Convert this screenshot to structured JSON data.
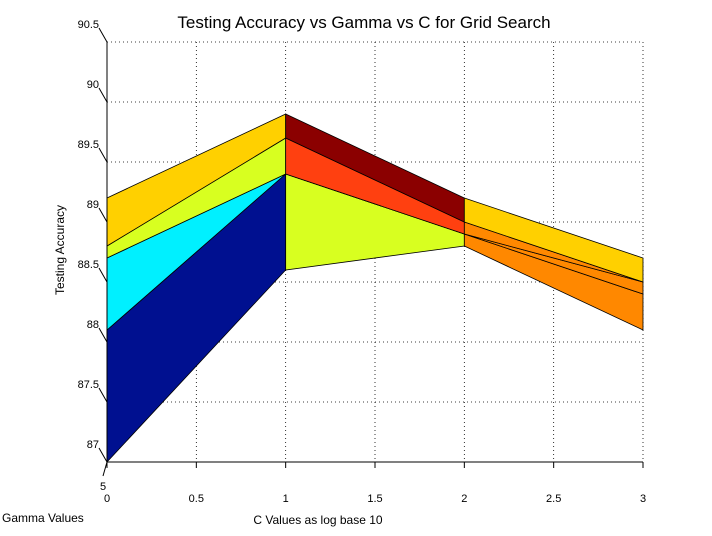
{
  "chart_data": {
    "type": "surface",
    "title": "Testing Accuracy vs Gamma vs C for Grid Search",
    "xlabel": "C Values as log base 10",
    "ylabel": "Testing Accuracy",
    "zlabel": "Gamma Values",
    "x_ticks": [
      "0",
      "0.5",
      "1",
      "1.5",
      "2",
      "2.5",
      "3"
    ],
    "y_ticks": [
      "87",
      "87.5",
      "88",
      "88.5",
      "89",
      "89.5",
      "90",
      "90.5"
    ],
    "z_tick": "5",
    "xlim": [
      0,
      3
    ],
    "ylim": [
      87,
      90.5
    ],
    "grid": true,
    "x": [
      0,
      1,
      2,
      3
    ],
    "series": [
      {
        "values": [
          89.2,
          89.9,
          89.2,
          88.7
        ]
      },
      {
        "values": [
          88.8,
          89.7,
          89.0,
          88.5
        ]
      },
      {
        "values": [
          88.7,
          89.4,
          88.9,
          88.5
        ]
      },
      {
        "values": [
          88.1,
          89.4,
          88.9,
          88.4
        ]
      },
      {
        "values": [
          87.0,
          88.6,
          88.8,
          88.1
        ]
      }
    ],
    "colors": [
      "#ffd000",
      "#d8ff20",
      "#00f0ff",
      "#001090",
      "#8b0000",
      "#ff4010",
      "#ff8800"
    ]
  }
}
